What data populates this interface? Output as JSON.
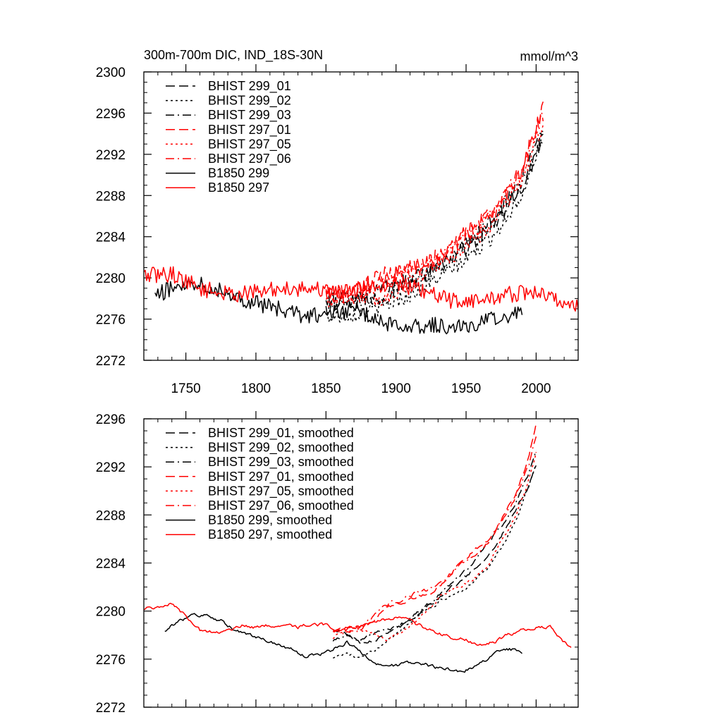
{
  "chart_data": [
    {
      "type": "line",
      "title": "300m-700m DIC, IND_18S-30N",
      "units": "mmol/m^3",
      "xlim": [
        1720,
        2030
      ],
      "ylim": [
        2272,
        2300
      ],
      "xticks": [
        1750,
        1800,
        1850,
        1900,
        1950,
        2000
      ],
      "yticks": [
        2272,
        2276,
        2280,
        2284,
        2288,
        2292,
        2296,
        2300
      ],
      "xtick_labels_shown": true,
      "legend_position": "top-left",
      "noise_amplitude": 0.8,
      "series": [
        {
          "name": "BHIST 299_01",
          "color": "#000000",
          "dash": "longdash",
          "x": [
            1850,
            1870,
            1890,
            1910,
            1930,
            1950,
            1970,
            1990,
            2005
          ],
          "y": [
            2277.6,
            2278.2,
            2278.8,
            2279.8,
            2281.2,
            2282.8,
            2285.0,
            2288.8,
            2293.6
          ]
        },
        {
          "name": "BHIST 299_02",
          "color": "#000000",
          "dash": "dot",
          "x": [
            1850,
            1870,
            1890,
            1910,
            1930,
            1950,
            1970,
            1990,
            2005
          ],
          "y": [
            2276.2,
            2276.5,
            2277.2,
            2278.4,
            2280.0,
            2281.8,
            2284.2,
            2288.2,
            2294.0
          ]
        },
        {
          "name": "BHIST 299_03",
          "color": "#000000",
          "dash": "dashdot",
          "x": [
            1850,
            1870,
            1890,
            1910,
            1930,
            1950,
            1970,
            1990,
            2005
          ],
          "y": [
            2277.0,
            2277.8,
            2278.0,
            2279.4,
            2281.0,
            2283.2,
            2285.8,
            2289.4,
            2294.4
          ]
        },
        {
          "name": "BHIST 297_01",
          "color": "#ff0000",
          "dash": "longdash",
          "x": [
            1850,
            1870,
            1890,
            1910,
            1930,
            1950,
            1970,
            1990,
            2005
          ],
          "y": [
            2278.6,
            2278.8,
            2280.2,
            2281.0,
            2282.0,
            2284.4,
            2286.6,
            2290.6,
            2296.6
          ]
        },
        {
          "name": "BHIST 297_05",
          "color": "#ff0000",
          "dash": "dot",
          "x": [
            1850,
            1870,
            1890,
            1910,
            1930,
            1950,
            1970,
            1990,
            2005
          ],
          "y": [
            2277.6,
            2278.4,
            2277.8,
            2279.6,
            2281.4,
            2283.0,
            2285.4,
            2289.6,
            2295.0
          ]
        },
        {
          "name": "BHIST 297_06",
          "color": "#ff0000",
          "dash": "dashdot",
          "x": [
            1850,
            1870,
            1890,
            1910,
            1930,
            1950,
            1970,
            1990,
            2005
          ],
          "y": [
            2278.4,
            2278.2,
            2279.6,
            2280.8,
            2281.8,
            2284.0,
            2286.4,
            2290.6,
            2296.0
          ]
        },
        {
          "name": "B1850 299",
          "color": "#000000",
          "dash": "solid",
          "x": [
            1728,
            1745,
            1760,
            1775,
            1790,
            1810,
            1830,
            1850,
            1870,
            1890,
            1910,
            1930,
            1950,
            1970,
            1990
          ],
          "y": [
            2278.2,
            2279.4,
            2279.6,
            2278.8,
            2278.0,
            2277.2,
            2276.4,
            2276.4,
            2277.0,
            2275.6,
            2275.4,
            2275.4,
            2275.2,
            2276.0,
            2276.8
          ]
        },
        {
          "name": "B1850 297",
          "color": "#ff0000",
          "dash": "solid",
          "x": [
            1720,
            1740,
            1760,
            1780,
            1800,
            1820,
            1840,
            1860,
            1880,
            1900,
            1920,
            1940,
            1960,
            1980,
            2000,
            2020,
            2030
          ],
          "y": [
            2280.2,
            2280.4,
            2279.0,
            2278.4,
            2278.6,
            2279.0,
            2279.0,
            2278.6,
            2279.2,
            2279.6,
            2278.6,
            2277.8,
            2277.8,
            2278.4,
            2278.6,
            2277.6,
            2277.2
          ]
        }
      ]
    },
    {
      "type": "line",
      "title": "",
      "units": "",
      "xlim": [
        1720,
        2030
      ],
      "ylim": [
        2272,
        2296
      ],
      "xticks": [
        1750,
        1800,
        1850,
        1900,
        1950,
        2000
      ],
      "yticks": [
        2272,
        2276,
        2280,
        2284,
        2288,
        2292,
        2296
      ],
      "xtick_labels_shown": false,
      "legend_position": "top-left",
      "noise_amplitude": 0.12,
      "series": [
        {
          "name": "BHIST 299_01, smoothed",
          "color": "#000000",
          "dash": "longdash",
          "x": [
            1855,
            1865,
            1875,
            1885,
            1895,
            1905,
            1915,
            1925,
            1935,
            1945,
            1955,
            1965,
            1975,
            1985,
            1995,
            2000
          ],
          "y": [
            2278.6,
            2278.0,
            2277.4,
            2277.6,
            2278.4,
            2278.8,
            2279.6,
            2280.6,
            2281.6,
            2282.4,
            2283.4,
            2284.6,
            2286.2,
            2288.2,
            2290.6,
            2292.2
          ]
        },
        {
          "name": "BHIST 299_02, smoothed",
          "color": "#000000",
          "dash": "dot",
          "x": [
            1855,
            1865,
            1875,
            1885,
            1895,
            1905,
            1915,
            1925,
            1935,
            1945,
            1955,
            1965,
            1975,
            1985,
            1995,
            2000
          ],
          "y": [
            2276.2,
            2276.4,
            2276.0,
            2276.8,
            2277.8,
            2278.6,
            2279.6,
            2280.4,
            2281.0,
            2281.6,
            2282.4,
            2283.6,
            2285.2,
            2287.4,
            2290.4,
            2292.2
          ]
        },
        {
          "name": "BHIST 299_03, smoothed",
          "color": "#000000",
          "dash": "dashdot",
          "x": [
            1855,
            1865,
            1875,
            1885,
            1895,
            1905,
            1915,
            1925,
            1935,
            1945,
            1955,
            1965,
            1975,
            1985,
            1995,
            2000
          ],
          "y": [
            2277.6,
            2278.0,
            2277.6,
            2278.2,
            2278.4,
            2279.0,
            2279.8,
            2280.8,
            2281.8,
            2282.8,
            2284.0,
            2285.6,
            2287.0,
            2288.8,
            2291.6,
            2293.4
          ]
        },
        {
          "name": "BHIST 297_01, smoothed",
          "color": "#ff0000",
          "dash": "longdash",
          "x": [
            1855,
            1865,
            1875,
            1885,
            1895,
            1905,
            1915,
            1925,
            1935,
            1945,
            1955,
            1965,
            1975,
            1985,
            1995,
            2000
          ],
          "y": [
            2278.4,
            2278.6,
            2278.6,
            2279.4,
            2280.4,
            2280.8,
            2281.2,
            2281.6,
            2282.4,
            2284.0,
            2285.0,
            2285.8,
            2287.6,
            2289.6,
            2292.8,
            2295.6
          ]
        },
        {
          "name": "BHIST 297_05, smoothed",
          "color": "#ff0000",
          "dash": "dot",
          "x": [
            1855,
            1865,
            1875,
            1885,
            1895,
            1905,
            1915,
            1925,
            1935,
            1945,
            1955,
            1965,
            1975,
            1985,
            1995,
            2000
          ],
          "y": [
            2277.8,
            2278.6,
            2278.4,
            2278.0,
            2277.6,
            2278.4,
            2279.2,
            2280.4,
            2281.6,
            2282.0,
            2282.6,
            2283.8,
            2285.8,
            2287.8,
            2291.0,
            2293.2
          ]
        },
        {
          "name": "BHIST 297_06, smoothed",
          "color": "#ff0000",
          "dash": "dashdot",
          "x": [
            1855,
            1865,
            1875,
            1885,
            1895,
            1905,
            1915,
            1925,
            1935,
            1945,
            1955,
            1965,
            1975,
            1985,
            1995,
            2000
          ],
          "y": [
            2278.4,
            2278.2,
            2278.6,
            2279.6,
            2280.6,
            2281.0,
            2281.6,
            2281.8,
            2282.6,
            2283.8,
            2284.6,
            2285.6,
            2287.4,
            2289.4,
            2292.2,
            2294.6
          ]
        },
        {
          "name": "B1850 299, smoothed",
          "color": "#000000",
          "dash": "solid",
          "x": [
            1735,
            1745,
            1755,
            1765,
            1775,
            1785,
            1795,
            1805,
            1815,
            1825,
            1835,
            1845,
            1855,
            1865,
            1875,
            1885,
            1895,
            1905,
            1915,
            1925,
            1935,
            1945,
            1955,
            1965,
            1975,
            1985,
            1990
          ],
          "y": [
            2278.4,
            2279.2,
            2279.6,
            2279.6,
            2279.2,
            2278.4,
            2278.0,
            2277.6,
            2277.2,
            2276.8,
            2276.2,
            2276.4,
            2276.8,
            2277.4,
            2276.6,
            2275.6,
            2275.4,
            2275.6,
            2275.8,
            2275.4,
            2275.2,
            2275.0,
            2275.2,
            2276.0,
            2276.8,
            2276.8,
            2276.6
          ]
        },
        {
          "name": "B1850 297, smoothed",
          "color": "#ff0000",
          "dash": "solid",
          "x": [
            1720,
            1730,
            1740,
            1750,
            1760,
            1770,
            1780,
            1790,
            1800,
            1810,
            1820,
            1830,
            1840,
            1850,
            1860,
            1870,
            1880,
            1890,
            1900,
            1910,
            1920,
            1930,
            1940,
            1950,
            1960,
            1970,
            1980,
            1990,
            2000,
            2010,
            2020,
            2025
          ],
          "y": [
            2280.2,
            2280.4,
            2280.6,
            2279.6,
            2278.4,
            2278.2,
            2278.4,
            2278.8,
            2278.6,
            2278.8,
            2279.0,
            2278.6,
            2279.0,
            2278.8,
            2278.4,
            2278.6,
            2279.0,
            2279.2,
            2279.4,
            2279.2,
            2278.6,
            2278.2,
            2277.8,
            2277.6,
            2277.2,
            2277.4,
            2278.0,
            2278.4,
            2278.6,
            2278.8,
            2277.4,
            2277.0
          ]
        }
      ]
    }
  ]
}
